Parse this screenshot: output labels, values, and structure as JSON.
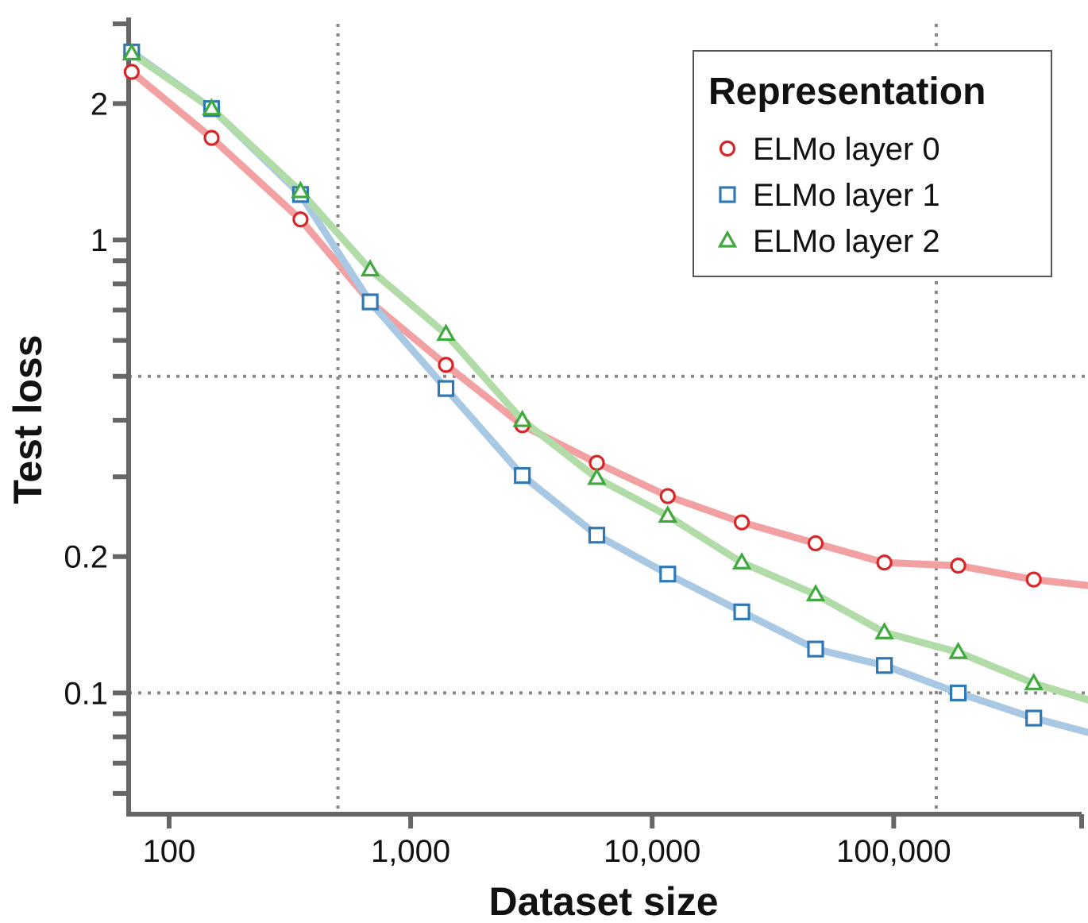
{
  "chart_data": {
    "type": "line",
    "title": "",
    "xlabel": "Dataset size",
    "ylabel": "Test loss",
    "xscale": "log",
    "yscale": "log",
    "xlim": [
      68,
      600000
    ],
    "ylim": [
      0.054,
      3.0
    ],
    "grid": "dotted lines at x=500, x=150000, y=0.5, y=0.1",
    "x_ticks": [
      {
        "value": 100,
        "label": "100"
      },
      {
        "value": 1000,
        "label": "1,000"
      },
      {
        "value": 10000,
        "label": "10,000"
      },
      {
        "value": 100000,
        "label": "100,000"
      }
    ],
    "y_ticks": [
      {
        "value": 2,
        "label": "2"
      },
      {
        "value": 1,
        "label": "1"
      },
      {
        "value": 0.2,
        "label": "0.2"
      },
      {
        "value": 0.1,
        "label": "0.1"
      }
    ],
    "legend": {
      "title": "Representation",
      "placement": "top-right"
    },
    "x": [
      70,
      150,
      350,
      680,
      1400,
      2900,
      5900,
      11600,
      23500,
      47500,
      91500,
      185000,
      380000,
      750000
    ],
    "series": [
      {
        "name": "ELMo layer 0",
        "color": "#d62728",
        "line_color": "#f2a0a2",
        "marker": "circle",
        "values": [
          2.35,
          1.68,
          1.11,
          0.73,
          0.53,
          0.39,
          0.322,
          0.272,
          0.238,
          0.214,
          0.194,
          0.191,
          0.178,
          0.171
        ]
      },
      {
        "name": "ELMo layer 1",
        "color": "#2f78b4",
        "line_color": "#a9c8e3",
        "marker": "square",
        "values": [
          2.6,
          1.95,
          1.26,
          0.73,
          0.47,
          0.302,
          0.223,
          0.183,
          0.151,
          0.125,
          0.115,
          0.1,
          0.088,
          0.08
        ]
      },
      {
        "name": "ELMo layer 2",
        "color": "#3fa83f",
        "line_color": "#b1dca8",
        "marker": "triangle",
        "values": [
          2.58,
          1.95,
          1.28,
          0.86,
          0.62,
          0.4,
          0.298,
          0.246,
          0.194,
          0.165,
          0.136,
          0.123,
          0.105,
          0.094
        ]
      }
    ]
  }
}
